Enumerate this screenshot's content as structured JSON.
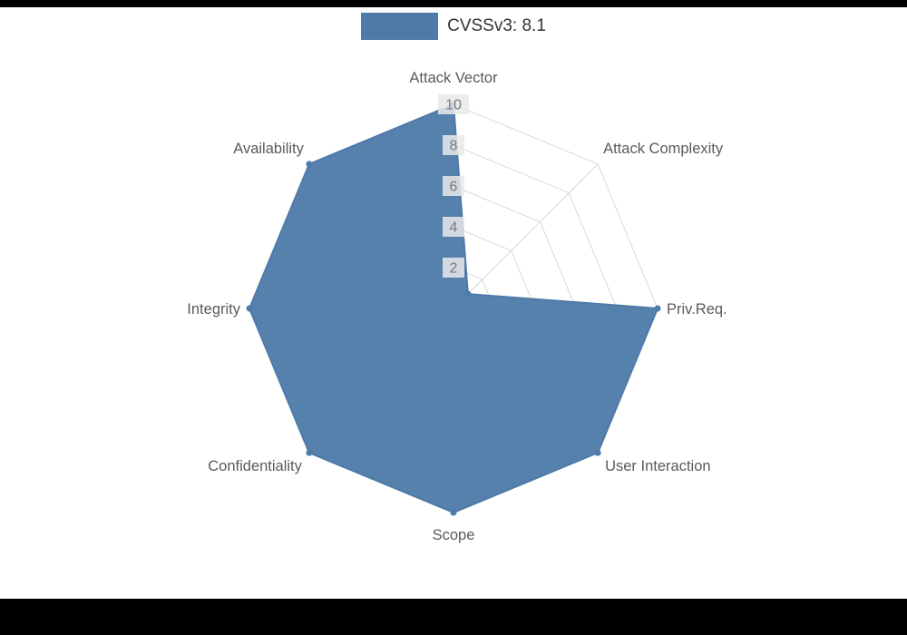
{
  "page": {
    "background": "#000000",
    "canvas_background": "#ffffff"
  },
  "legend": {
    "label": "CVSSv3: 8.1",
    "swatch_color": "#4d7aa8"
  },
  "chart_data": {
    "type": "radar",
    "title": "CVSSv3: 8.1",
    "axes": [
      "Attack Vector",
      "Attack Complexity",
      "Priv.Req.",
      "User Interaction",
      "Scope",
      "Confidentiality",
      "Integrity",
      "Availability"
    ],
    "series": [
      {
        "name": "CVSSv3: 8.1",
        "values": [
          10,
          1,
          10,
          10,
          10,
          10,
          10,
          10
        ],
        "color": "#4d7aa8",
        "fill_opacity": 0.95
      }
    ],
    "ticks": [
      2,
      4,
      6,
      8,
      10
    ],
    "max": 10,
    "grid": true,
    "legend_position": "top",
    "colors": {
      "grid": "#d9d9d9",
      "axis_label": "#5a5a5a",
      "tick_label": "#7a7a7a",
      "tick_label_bg": "#e9e9e9"
    }
  }
}
